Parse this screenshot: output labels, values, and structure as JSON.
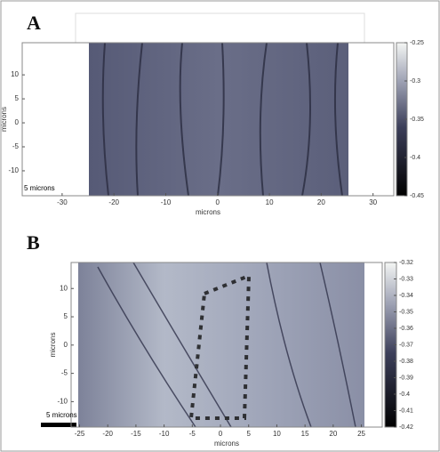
{
  "chart_data": [
    {
      "type": "image",
      "label": "A",
      "xlabel": "microns",
      "ylabel": "microns",
      "scale_bar": "5 microns",
      "xlim": [
        -37.7,
        34
      ],
      "ylim": [
        -15.2,
        16.7
      ],
      "xticks": [
        -30,
        -20,
        -10,
        0,
        10,
        20,
        30
      ],
      "yticks": [
        -10,
        -5,
        0,
        5,
        10
      ],
      "clim": [
        -0.45,
        -0.25
      ],
      "cticks": [
        -0.45,
        -0.4,
        -0.35,
        -0.3,
        -0.25
      ]
    },
    {
      "type": "image",
      "label": "B",
      "xlabel": "microns",
      "ylabel": "microns",
      "scale_bar": "5 microns",
      "xlim": [
        -26.5,
        28.7
      ],
      "ylim": [
        -14.5,
        14.6
      ],
      "xticks": [
        -25,
        -20,
        -15,
        -10,
        -5,
        0,
        5,
        10,
        15,
        20,
        25
      ],
      "yticks": [
        -10,
        -5,
        0,
        5,
        10
      ],
      "clim": [
        -0.42,
        -0.32
      ],
      "cticks": [
        -0.42,
        -0.41,
        -0.4,
        -0.39,
        -0.38,
        -0.37,
        -0.36,
        -0.35,
        -0.34,
        -0.33,
        -0.32
      ]
    }
  ]
}
